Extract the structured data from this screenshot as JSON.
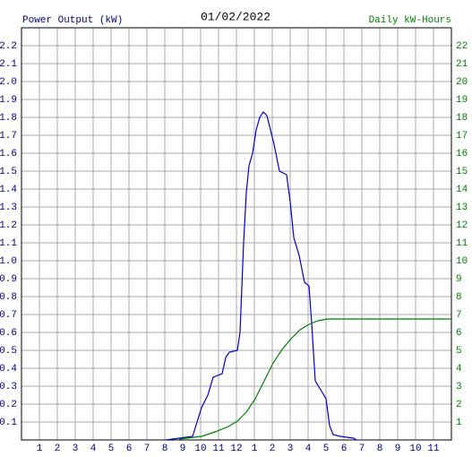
{
  "chart_data": {
    "type": "line",
    "title": "01/02/2022",
    "y_label": "Power Output (kW)",
    "y2_label": "Daily kW-Hours",
    "xlim": [
      0,
      24
    ],
    "xticks": [
      1,
      2,
      3,
      4,
      5,
      6,
      7,
      8,
      9,
      10,
      11,
      12,
      {
        "value": 13,
        "label": "1"
      },
      {
        "value": 14,
        "label": "2"
      },
      {
        "value": 15,
        "label": "3"
      },
      {
        "value": 16,
        "label": "4"
      },
      {
        "value": 17,
        "label": "5"
      },
      {
        "value": 18,
        "label": "6"
      },
      {
        "value": 19,
        "label": "7"
      },
      {
        "value": 20,
        "label": "8"
      },
      {
        "value": 21,
        "label": "9"
      },
      {
        "value": 22,
        "label": "10"
      },
      {
        "value": 23,
        "label": "11"
      }
    ],
    "ylim": [
      0,
      2.3
    ],
    "yticks": [
      0.1,
      0.2,
      0.3,
      0.4,
      0.5,
      0.6,
      0.7,
      0.8,
      0.9,
      {
        "value": 1,
        "label": "1.0"
      },
      1.1,
      1.2,
      1.3,
      1.4,
      1.5,
      1.6,
      1.7,
      1.8,
      1.9,
      {
        "value": 2,
        "label": "2.0"
      },
      2.1,
      2.2
    ],
    "y2lim": [
      0,
      23
    ],
    "y2ticks": [
      1,
      2,
      3,
      4,
      5,
      6,
      7,
      8,
      9,
      10,
      11,
      12,
      13,
      14,
      15,
      16,
      17,
      18,
      19,
      20,
      21,
      22
    ],
    "grid": true,
    "series": [
      {
        "color": "#0000cc",
        "axis": "y",
        "x": [
          8.05,
          8.8,
          9.55,
          9.8,
          10.05,
          10.4,
          10.7,
          11.2,
          11.4,
          11.6,
          12.05,
          12.2,
          12.3,
          12.4,
          12.55,
          12.7,
          12.9,
          13.1,
          13.3,
          13.5,
          13.7,
          13.9,
          14.1,
          14.4,
          14.8,
          15.0,
          15.2,
          15.5,
          15.8,
          16.05,
          16.2,
          16.4,
          16.7,
          17.0,
          17.2,
          17.4,
          17.8,
          18.55,
          18.7
        ],
        "values": [
          0,
          0.01,
          0.02,
          0.1,
          0.18,
          0.25,
          0.35,
          0.37,
          0.46,
          0.49,
          0.5,
          0.6,
          0.85,
          1.1,
          1.38,
          1.53,
          1.6,
          1.73,
          1.8,
          1.83,
          1.81,
          1.73,
          1.65,
          1.5,
          1.48,
          1.33,
          1.13,
          1.03,
          0.88,
          0.86,
          0.65,
          0.33,
          0.28,
          0.23,
          0.08,
          0.03,
          0.02,
          0.01,
          0
        ]
      },
      {
        "color": "#008000",
        "axis": "y2",
        "x": [
          8.8,
          10.05,
          10.8,
          11.55,
          12.05,
          12.55,
          13.05,
          13.55,
          14.05,
          14.55,
          15.05,
          15.55,
          16.05,
          16.55,
          17.05,
          24
        ],
        "values": [
          0.05,
          0.2,
          0.45,
          0.75,
          1.05,
          1.55,
          2.3,
          3.3,
          4.3,
          5.05,
          5.65,
          6.15,
          6.45,
          6.65,
          6.75,
          6.75
        ]
      }
    ]
  }
}
